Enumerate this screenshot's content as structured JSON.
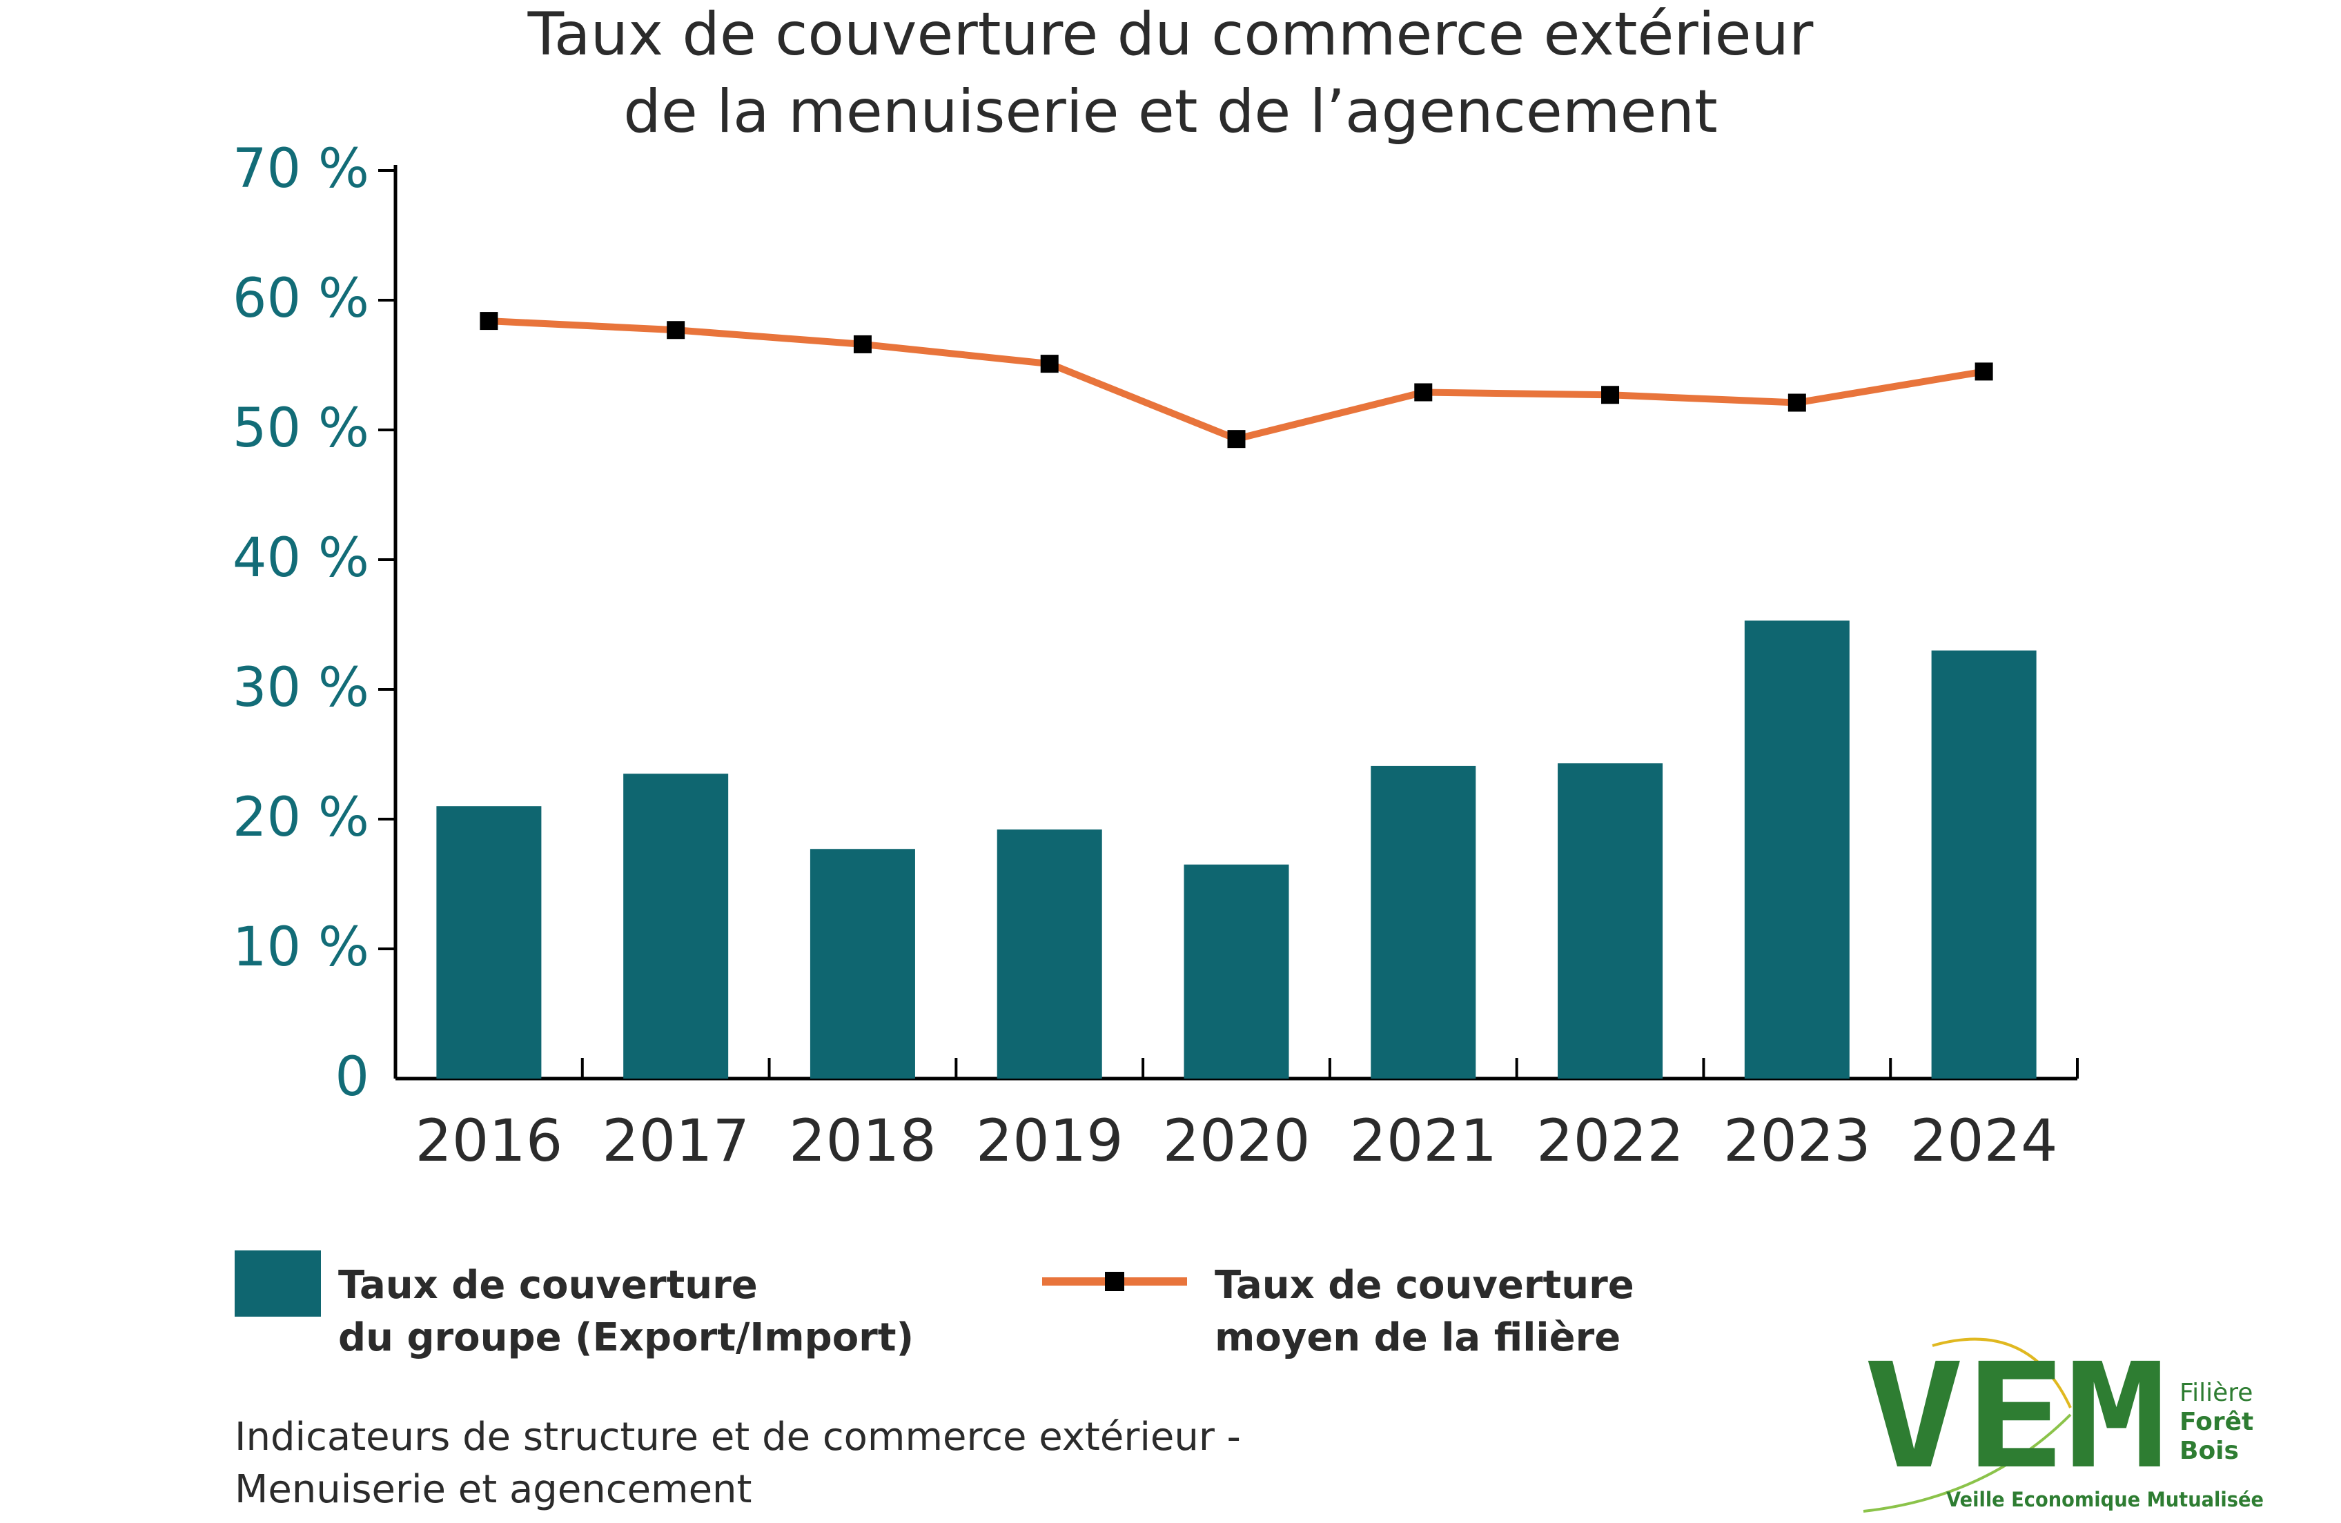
{
  "title": {
    "line1": "Taux de couverture du commerce extérieur",
    "line2": "de la menuiserie et de l’agencement"
  },
  "chart_data": {
    "type": "bar",
    "categories": [
      "2016",
      "2017",
      "2018",
      "2019",
      "2020",
      "2021",
      "2022",
      "2023",
      "2024"
    ],
    "series": [
      {
        "type": "bar",
        "name": "Taux de couverture du groupe (Export/Import)",
        "values": [
          21,
          23.5,
          17.7,
          19.2,
          16.5,
          24.1,
          24.3,
          35.3,
          33
        ]
      },
      {
        "type": "line",
        "name": "Taux de couverture moyen de la filière",
        "values": [
          58.4,
          57.7,
          56.6,
          55.1,
          49.3,
          52.9,
          52.7,
          52.1,
          54.5
        ]
      }
    ],
    "ylim": [
      0,
      70
    ],
    "yticks": [
      0,
      10,
      20,
      30,
      40,
      50,
      60,
      70
    ],
    "ytick_labels": [
      "0",
      "10 %",
      "20 %",
      "30 %",
      "40 %",
      "50 %",
      "60 %",
      "70 %"
    ],
    "grid": false,
    "legend_position": "bottom",
    "colors": {
      "bar": "#0f6670",
      "line": "#e8743b",
      "marker": "#000000",
      "axis_text": "#126c77"
    }
  },
  "legend": {
    "bar_line1": "Taux de couverture",
    "bar_line2": "du groupe (Export/Import)",
    "line_line1": "Taux de couverture",
    "line_line2": "moyen de la filière"
  },
  "source": {
    "line1": "Indicateurs de structure et de commerce extérieur -",
    "line2": "Menuiserie et agencement"
  },
  "logo": {
    "wordmark": "VEM",
    "side1": "Filière",
    "side2": "Forêt",
    "side3": "Bois",
    "tagline": "Veille Economique Mutualisée",
    "color": "#2e7d32",
    "accent": "#e0b820"
  }
}
